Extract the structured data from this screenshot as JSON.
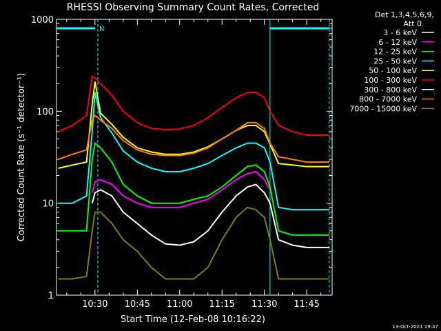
{
  "chart_data": {
    "type": "line",
    "title": "RHESSI Observing Summary Count Rates, Corrected",
    "xlabel": "Start Time (12-Feb-08 10:16:22)",
    "ylabel": "Corrected Count Rate (s⁻¹ detector⁻¹)",
    "y_scale": "log",
    "ylim": [
      1,
      1000
    ],
    "xlim": [
      "10:16:22",
      "11:54:00"
    ],
    "x_ticks": [
      "10:30",
      "10:45",
      "11:00",
      "11:15",
      "11:30",
      "11:45"
    ],
    "y_ticks": [
      "1",
      "10",
      "100",
      "1000"
    ],
    "legend": {
      "header1": "Det 1,3,4,5,6,9,",
      "header2": "Att 0",
      "placement": "right"
    },
    "annotations": {
      "night_marker": "N",
      "night_start": "10:31",
      "night_end": "11:32",
      "end_marker": "11:53",
      "footer": "13-Oct-2021 19:47"
    },
    "x": [
      "10:17",
      "10:22",
      "10:27",
      "10:29",
      "10:30",
      "10:32",
      "10:36",
      "10:40",
      "10:45",
      "10:50",
      "10:55",
      "11:00",
      "11:05",
      "11:10",
      "11:15",
      "11:20",
      "11:24",
      "11:27",
      "11:30",
      "11:32",
      "11:35",
      "11:40",
      "11:45",
      "11:50",
      "11:53"
    ],
    "series": [
      {
        "name": "3 - 6 keV",
        "color": "#ffffff",
        "values": [
          null,
          null,
          null,
          10,
          13,
          14,
          12,
          8,
          6,
          4.5,
          3.6,
          3.5,
          3.8,
          5,
          8,
          12,
          15,
          16,
          13,
          10,
          4,
          3.5,
          3.3,
          3.3,
          3.3
        ]
      },
      {
        "name": "6 - 12 keV",
        "color": "#ff00ff",
        "values": [
          null,
          null,
          null,
          13,
          17,
          18,
          16,
          12,
          10,
          9,
          9,
          9,
          10,
          11,
          14,
          18,
          21,
          22,
          18,
          14,
          null,
          null,
          null,
          null,
          null
        ]
      },
      {
        "name": "12 - 25 keV",
        "color": "#00ff00",
        "values": [
          5,
          5,
          5,
          30,
          45,
          40,
          28,
          16,
          12,
          10,
          10,
          10,
          11,
          12,
          15,
          20,
          25,
          26,
          22,
          15,
          5,
          4.5,
          4.5,
          4.5,
          4.5
        ]
      },
      {
        "name": "25 - 50 keV",
        "color": "#00ffff",
        "values": [
          10,
          10,
          12,
          60,
          160,
          85,
          58,
          37,
          28,
          24,
          22,
          22,
          24,
          27,
          33,
          40,
          45,
          45,
          40,
          28,
          9,
          8.5,
          8.5,
          8.5,
          8.5
        ]
      },
      {
        "name": "50 - 100 keV",
        "color": "#ffff00",
        "values": [
          24,
          26,
          28,
          120,
          210,
          95,
          72,
          52,
          40,
          36,
          34,
          34,
          36,
          41,
          50,
          62,
          70,
          70,
          60,
          44,
          27,
          26,
          25,
          25,
          25
        ]
      },
      {
        "name": "100 - 300 keV",
        "color": "#ff0000",
        "values": [
          60,
          70,
          90,
          240,
          230,
          200,
          150,
          100,
          75,
          65,
          63,
          64,
          70,
          85,
          110,
          140,
          160,
          160,
          140,
          100,
          70,
          60,
          55,
          55,
          55
        ]
      },
      {
        "name": "300 - 800 keV",
        "color": "#ffffff",
        "values": [
          null,
          null,
          null,
          null,
          null,
          null,
          null,
          null,
          null,
          null,
          null,
          null,
          null,
          null,
          null,
          null,
          null,
          null,
          null,
          null,
          null,
          null,
          null,
          null,
          null
        ]
      },
      {
        "name": "800 - 7000 keV",
        "color": "#ff7f00",
        "values": [
          30,
          34,
          38,
          80,
          90,
          80,
          65,
          48,
          38,
          34,
          33,
          33,
          35,
          40,
          50,
          62,
          75,
          75,
          65,
          45,
          32,
          30,
          28,
          28,
          28
        ]
      },
      {
        "name": "7000 - 15000 keV",
        "color": "#808000",
        "values": [
          1.5,
          1.5,
          1.6,
          5,
          8,
          8,
          6,
          4,
          3,
          2,
          1.5,
          1.5,
          1.5,
          2,
          4,
          7,
          9,
          8.5,
          7,
          4,
          1.5,
          1.5,
          1.5,
          1.5,
          1.5
        ]
      }
    ]
  }
}
